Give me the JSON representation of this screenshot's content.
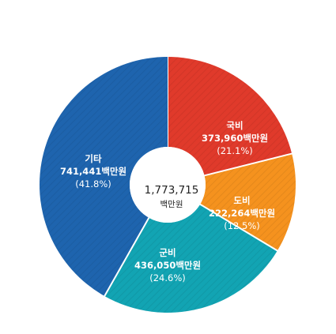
{
  "chart_data": {
    "type": "pie",
    "style": "donut",
    "center": {
      "total": "1,773,715",
      "unit": "백만원"
    },
    "slices": [
      {
        "name": "국비",
        "value_label": "373,960백만원",
        "pct_label": "(21.1%)",
        "value": 373960,
        "percent": 21.1,
        "color": "#E03A2B"
      },
      {
        "name": "도비",
        "value_label": "222,264백만원",
        "pct_label": "(12.5%)",
        "value": 222264,
        "percent": 12.5,
        "color": "#F5921E"
      },
      {
        "name": "군비",
        "value_label": "436,050백만원",
        "pct_label": "(24.6%)",
        "value": 436050,
        "percent": 24.6,
        "color": "#12A4B3"
      },
      {
        "name": "기타",
        "value_label": "741,441백만원",
        "pct_label": "(41.8%)",
        "value": 741441,
        "percent": 41.8,
        "color": "#1E64AE"
      }
    ]
  }
}
